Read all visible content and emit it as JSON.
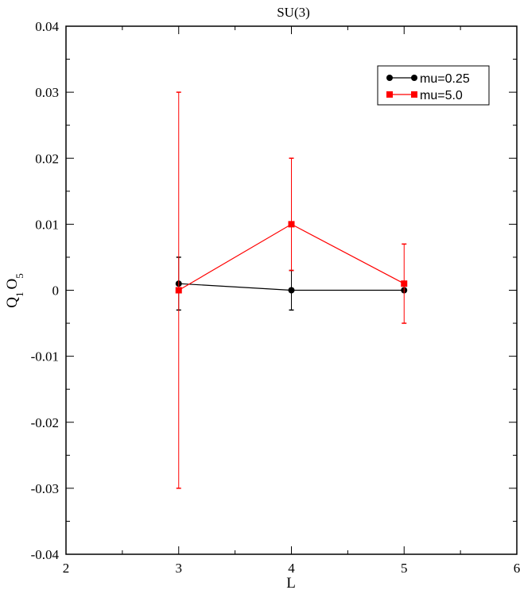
{
  "chart_data": {
    "type": "line",
    "title": "SU(3)",
    "xlabel": "L",
    "ylabel_main": "Q",
    "ylabel_sub1": "1",
    "ylabel_mid": "O",
    "ylabel_sub2": "5",
    "xlim": [
      2,
      6
    ],
    "ylim": [
      -0.04,
      0.04
    ],
    "x_ticks": [
      2,
      3,
      4,
      5,
      6
    ],
    "x_tick_labels": [
      "2",
      "3",
      "4",
      "5",
      "6"
    ],
    "y_ticks": [
      -0.04,
      -0.03,
      -0.02,
      -0.01,
      0,
      0.01,
      0.02,
      0.03,
      0.04
    ],
    "y_tick_labels": [
      "-0.04",
      "-0.03",
      "-0.02",
      "-0.01",
      "0",
      "0.01",
      "0.02",
      "0.03",
      "0.04"
    ],
    "grid": false,
    "legend_position": "top-right",
    "series": [
      {
        "name": "mu=0.25",
        "color": "#000000",
        "marker": "circle",
        "x": [
          3,
          4,
          5
        ],
        "y": [
          0.001,
          0.0,
          0.0
        ],
        "err_low": [
          -0.003,
          -0.003,
          0.0
        ],
        "err_high": [
          0.005,
          0.003,
          0.0
        ]
      },
      {
        "name": "mu=5.0",
        "color": "#ff0000",
        "marker": "square",
        "x": [
          3,
          4,
          5
        ],
        "y": [
          0.0,
          0.01,
          0.001
        ],
        "err_low": [
          -0.03,
          0.003,
          -0.005
        ],
        "err_high": [
          0.03,
          0.02,
          0.007
        ]
      }
    ]
  }
}
